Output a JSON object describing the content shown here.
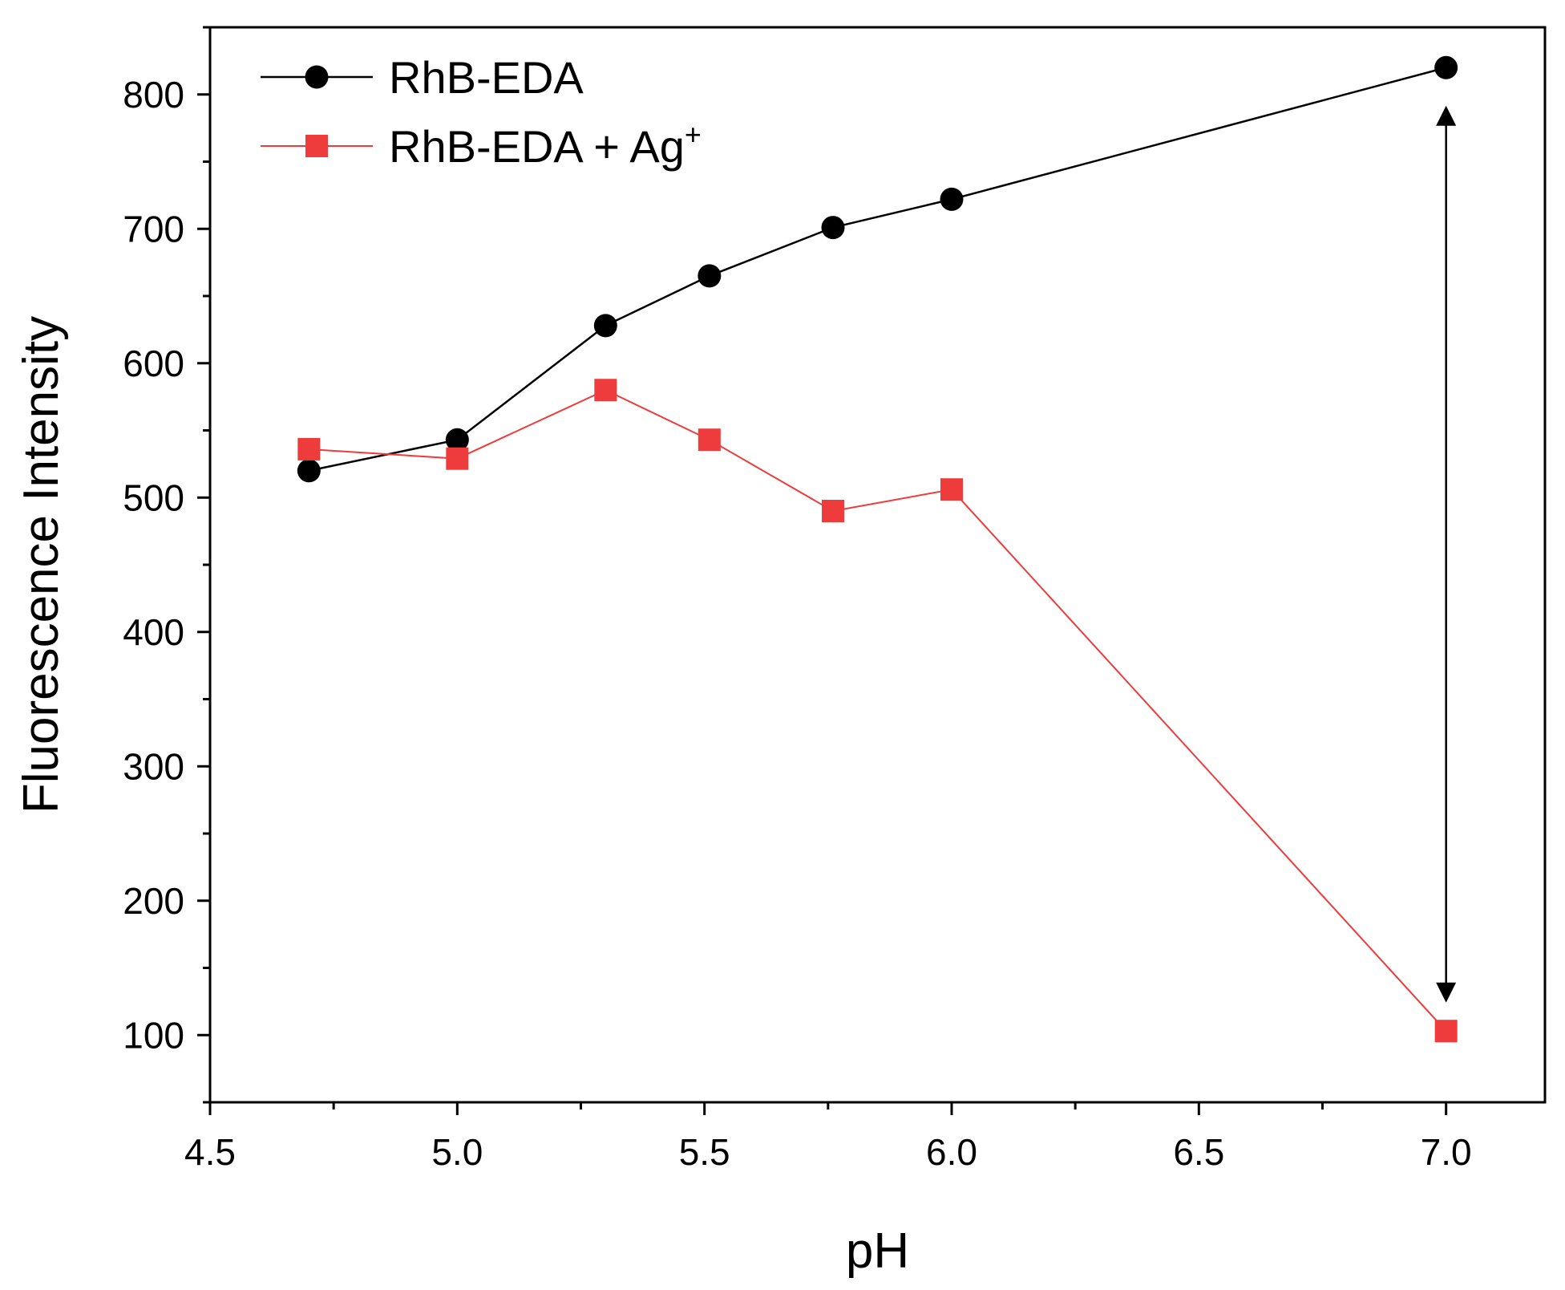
{
  "chart_data": {
    "type": "line",
    "title": "",
    "xlabel": "pH",
    "ylabel": "Fluorescence Intensity",
    "xlim": [
      4.5,
      7.2
    ],
    "ylim": [
      50,
      850
    ],
    "x_ticks": [
      4.5,
      5.0,
      5.5,
      6.0,
      6.5,
      7.0
    ],
    "x_tick_labels": [
      "4.5",
      "5.0",
      "5.5",
      "6.0",
      "6.5",
      "7.0"
    ],
    "y_ticks": [
      100,
      200,
      300,
      400,
      500,
      600,
      700,
      800
    ],
    "y_tick_labels": [
      "100",
      "200",
      "300",
      "400",
      "500",
      "600",
      "700",
      "800"
    ],
    "grid": false,
    "legend_position": "top-left",
    "series": [
      {
        "name": "RhB-EDA",
        "color": "#000000",
        "marker": "circle",
        "x": [
          4.7,
          5.0,
          5.3,
          5.51,
          5.76,
          6.0,
          7.0
        ],
        "values": [
          520,
          543,
          628,
          665,
          701,
          722,
          820
        ]
      },
      {
        "name": "RhB-EDA + Ag",
        "superscript": "+",
        "color": "#ee3b3b",
        "marker": "square",
        "x": [
          4.7,
          5.0,
          5.3,
          5.51,
          5.76,
          6.0,
          7.0
        ],
        "values": [
          536,
          529,
          580,
          543,
          490,
          506,
          103
        ]
      }
    ],
    "annotations": [
      {
        "type": "double-arrow",
        "x": 7.0,
        "y_from": 103,
        "y_to": 820,
        "color": "#000000"
      }
    ]
  }
}
